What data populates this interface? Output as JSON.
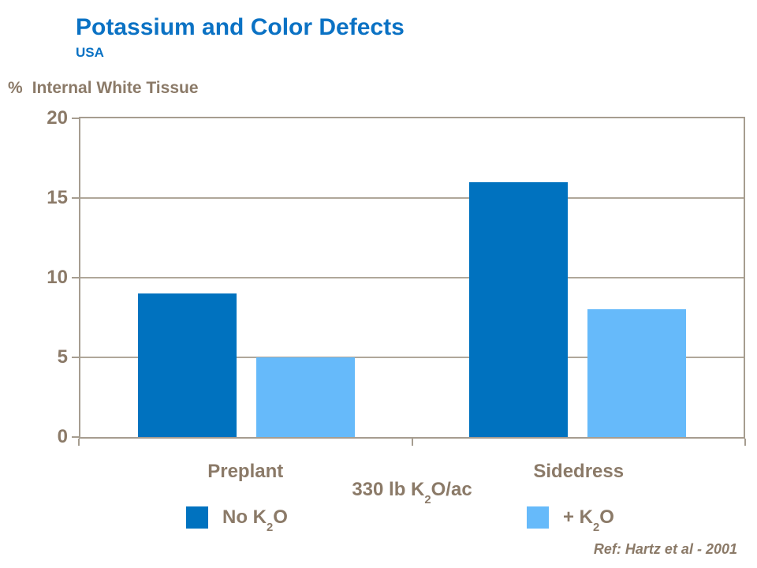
{
  "header": {
    "title": "Potassium and Color Defects",
    "subtitle": "USA"
  },
  "y_axis_title": {
    "prefix": "%",
    "label": "Internal White Tissue"
  },
  "chart_data": {
    "type": "bar",
    "title": "Potassium and Color Defects",
    "categories": [
      "Preplant",
      "Sidedress"
    ],
    "series": [
      {
        "name": "No K2O",
        "label_pre": "No K",
        "label_sub": "2",
        "label_post": "O",
        "color": "#0072BF",
        "values": [
          9,
          16
        ]
      },
      {
        "name": "+ K2O",
        "label_pre": "+ K",
        "label_sub": "2",
        "label_post": "O",
        "color": "#66BAFA",
        "values": [
          5,
          8
        ]
      }
    ],
    "xlabel": {
      "pre": "330 lb K",
      "sub": "2",
      "post": "O/ac"
    },
    "ylabel": "% Internal White Tissue",
    "ylim": [
      0,
      20
    ],
    "yticks": [
      0,
      5,
      10,
      15,
      20
    ],
    "grid": "horizontal",
    "legend_position": "bottom"
  },
  "footer": {
    "reference": "Ref: Hartz et al - 2001"
  },
  "colors": {
    "title_blue": "#0B72C4",
    "axis_text_brown": "#8B7A68",
    "frame_tan": "#A69D90",
    "gridline_tan": "#B0A79A",
    "series_dark_blue": "#0072BF",
    "series_light_blue": "#66BAFA"
  }
}
